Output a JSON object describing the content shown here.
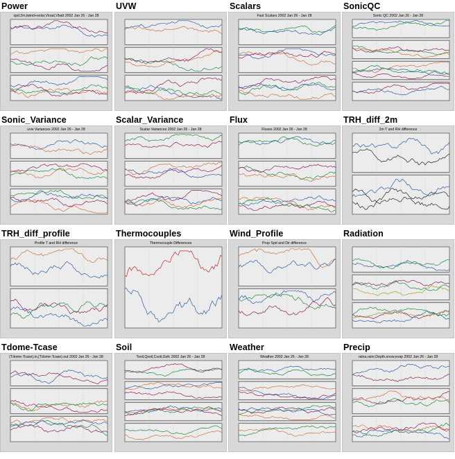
{
  "page": {
    "thumbnails": [
      {
        "title": "Power",
        "caption": "spd.2m,twind+solar,Vload,Vbatt 2002 Jan 26 - Jan 28",
        "panels": 3,
        "palette": [
          "#2c5aa0",
          "#8b1a5a",
          "#d0703a",
          "#1a8a3a"
        ]
      },
      {
        "title": "UVW",
        "caption": "",
        "panels": 3,
        "palette": [
          "#2c5aa0",
          "#d0703a",
          "#1a8a3a",
          "#8b1a5a"
        ]
      },
      {
        "title": "Scalars",
        "caption": "Fast Scalars 2002 Jan 26 - Jan 28",
        "panels": 3,
        "palette": [
          "#1a8a3a",
          "#2c5aa0",
          "#d0703a",
          "#8b1a5a"
        ]
      },
      {
        "title": "SonicQC",
        "caption": "Sonic QC 2002 Jan 26 - Jan 28",
        "panels": 4,
        "palette": [
          "#2c5aa0",
          "#1a8a3a",
          "#d0703a",
          "#8b1a5a"
        ]
      },
      {
        "title": "Sonic_Variance",
        "caption": "uvw Variances 2002 Jan 26 - Jan 28",
        "panels": 3,
        "palette": [
          "#2c5aa0",
          "#d0703a",
          "#1a8a3a",
          "#8b1a5a"
        ]
      },
      {
        "title": "Scalar_Variance",
        "caption": "Scalar Variances 2002 Jan 26 - Jan 28",
        "panels": 3,
        "palette": [
          "#1a8a3a",
          "#8b1a5a",
          "#2c5aa0",
          "#d0703a"
        ]
      },
      {
        "title": "Flux",
        "caption": "Fluxes 2002 Jan 26 - Jan 28",
        "panels": 3,
        "palette": [
          "#2c5aa0",
          "#1a8a3a",
          "#d0703a",
          "#8b1a5a"
        ]
      },
      {
        "title": "TRH_diff_2m",
        "caption": "2m T and RH difference",
        "panels": 2,
        "palette": [
          "#2c5aa0",
          "#222222",
          "#2c5aa0",
          "#222222"
        ]
      },
      {
        "title": "TRH_diff_profile",
        "caption": "Profile T and RH difference",
        "panels": 2,
        "palette": [
          "#d0703a",
          "#2c5aa0",
          "#8b1a5a",
          "#1a8a3a"
        ]
      },
      {
        "title": "Thermocouples",
        "caption": "Thermocouple Differences",
        "panels": 1,
        "palette": [
          "#cc2222",
          "#2c5aa0",
          "#1a8a3a",
          "#222222"
        ]
      },
      {
        "title": "Wind_Profile",
        "caption": "Prop Spd and Dir difference",
        "panels": 2,
        "palette": [
          "#d0703a",
          "#2c5aa0",
          "#1a8a3a",
          "#8b1a5a"
        ]
      },
      {
        "title": "Radiation",
        "caption": "",
        "panels": 3,
        "palette": [
          "#2c5aa0",
          "#1a8a3a",
          "#8b1a5a",
          "#a0a020"
        ]
      },
      {
        "title": "Tdome-Tcase",
        "caption": "(Tdome-Tcase),in,(Tdome-Tcase).out 2002 Jan 26 - Jan 28",
        "panels": 3,
        "palette": [
          "#2c5aa0",
          "#8b1a5a",
          "#d0703a",
          "#1a8a3a"
        ]
      },
      {
        "title": "Soil",
        "caption": "Tsoil,Qsoil,Csoil,Gsfc 2002 Jan 26 - Jan 28",
        "panels": 4,
        "palette": [
          "#1a8a3a",
          "#8b1a5a",
          "#2c5aa0",
          "#d0703a"
        ]
      },
      {
        "title": "Weather",
        "caption": "Weather 2002 Jan 26 - Jan 28",
        "panels": 4,
        "palette": [
          "#1a8a3a",
          "#2c5aa0",
          "#8b1a5a",
          "#d0703a"
        ]
      },
      {
        "title": "Precip",
        "caption": "raina,rainr,Depth.snow,evap 2002 Jan 26 - Jan 28",
        "panels": 3,
        "palette": [
          "#2c5aa0",
          "#8b1a5a",
          "#1a8a3a",
          "#d0703a"
        ]
      }
    ],
    "chart_data": {
      "type": "line",
      "title": "",
      "note": ""
    }
  }
}
